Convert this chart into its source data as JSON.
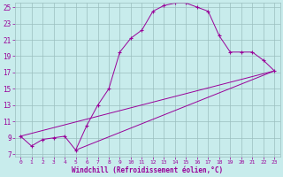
{
  "xlabel": "Windchill (Refroidissement éolien,°C)",
  "bg_color": "#c8ecec",
  "grid_color": "#9bbfbf",
  "line_color": "#990099",
  "x_min": 0,
  "x_max": 23,
  "y_min": 7,
  "y_max": 25,
  "y_ticks": [
    7,
    9,
    11,
    13,
    15,
    17,
    19,
    21,
    23,
    25
  ],
  "x_ticks": [
    0,
    1,
    2,
    3,
    4,
    5,
    6,
    7,
    8,
    9,
    10,
    11,
    12,
    13,
    14,
    15,
    16,
    17,
    18,
    19,
    20,
    21,
    22,
    23
  ],
  "curve1_x": [
    0,
    1,
    2,
    3,
    4,
    5,
    6,
    7,
    8,
    9,
    10,
    11,
    12,
    13,
    14,
    15,
    16,
    17,
    18,
    19,
    20,
    21,
    22,
    23
  ],
  "curve1_y": [
    9.2,
    8.0,
    8.8,
    9.0,
    9.2,
    7.5,
    10.5,
    13.0,
    15.0,
    19.5,
    21.2,
    22.2,
    24.5,
    25.2,
    25.5,
    25.5,
    25.0,
    24.5,
    21.5,
    19.5,
    19.5,
    19.5,
    18.5,
    17.2
  ],
  "line2_x": [
    0,
    23
  ],
  "line2_y": [
    9.2,
    17.2
  ],
  "line3_x": [
    5,
    23
  ],
  "line3_y": [
    7.5,
    17.2
  ]
}
